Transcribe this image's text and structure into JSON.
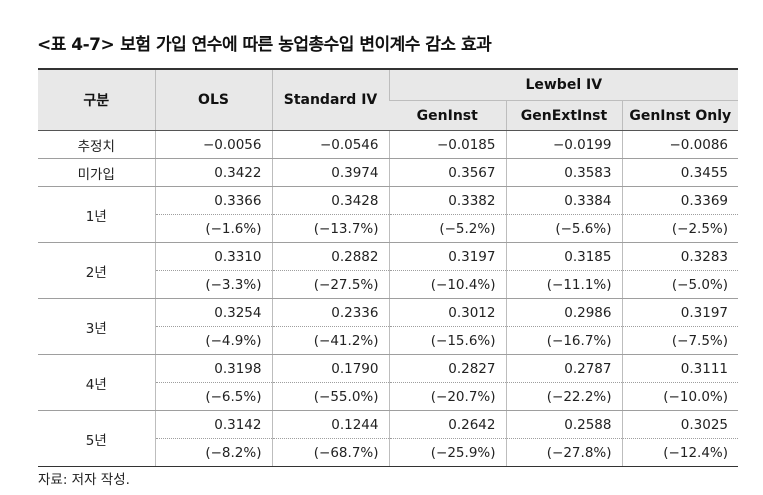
{
  "title": {
    "label": "<표 4-7>",
    "text": "보험 가입 연수에 따른 농업총수입 변이계수 감소 효과"
  },
  "table": {
    "header": {
      "col_group": "구분",
      "ols": "OLS",
      "standard_iv": "Standard IV",
      "lewbel_iv": "Lewbel IV",
      "geninst": "GenInst",
      "genextinst": "GenExtInst",
      "geninst_only": "GenInst Only"
    },
    "rows": [
      {
        "label": "추정치",
        "values": [
          "−0.0056",
          "−0.0546",
          "−0.0185",
          "−0.0199",
          "−0.0086"
        ]
      },
      {
        "label": "미가입",
        "values": [
          "0.3422",
          "0.3974",
          "0.3567",
          "0.3583",
          "0.3455"
        ]
      }
    ],
    "years": [
      {
        "label": "1년",
        "values": [
          "0.3366",
          "0.3428",
          "0.3382",
          "0.3384",
          "0.3369"
        ],
        "pct": [
          "(−1.6%)",
          "(−13.7%)",
          "(−5.2%)",
          "(−5.6%)",
          "(−2.5%)"
        ]
      },
      {
        "label": "2년",
        "values": [
          "0.3310",
          "0.2882",
          "0.3197",
          "0.3185",
          "0.3283"
        ],
        "pct": [
          "(−3.3%)",
          "(−27.5%)",
          "(−10.4%)",
          "(−11.1%)",
          "(−5.0%)"
        ]
      },
      {
        "label": "3년",
        "values": [
          "0.3254",
          "0.2336",
          "0.3012",
          "0.2986",
          "0.3197"
        ],
        "pct": [
          "(−4.9%)",
          "(−41.2%)",
          "(−15.6%)",
          "(−16.7%)",
          "(−7.5%)"
        ]
      },
      {
        "label": "4년",
        "values": [
          "0.3198",
          "0.1790",
          "0.2827",
          "0.2787",
          "0.3111"
        ],
        "pct": [
          "(−6.5%)",
          "(−55.0%)",
          "(−20.7%)",
          "(−22.2%)",
          "(−10.0%)"
        ]
      },
      {
        "label": "5년",
        "values": [
          "0.3142",
          "0.1244",
          "0.2642",
          "0.2588",
          "0.3025"
        ],
        "pct": [
          "(−8.2%)",
          "(−68.7%)",
          "(−25.9%)",
          "(−27.8%)",
          "(−12.4%)"
        ]
      }
    ]
  },
  "source_note": "자료: 저자 작성."
}
